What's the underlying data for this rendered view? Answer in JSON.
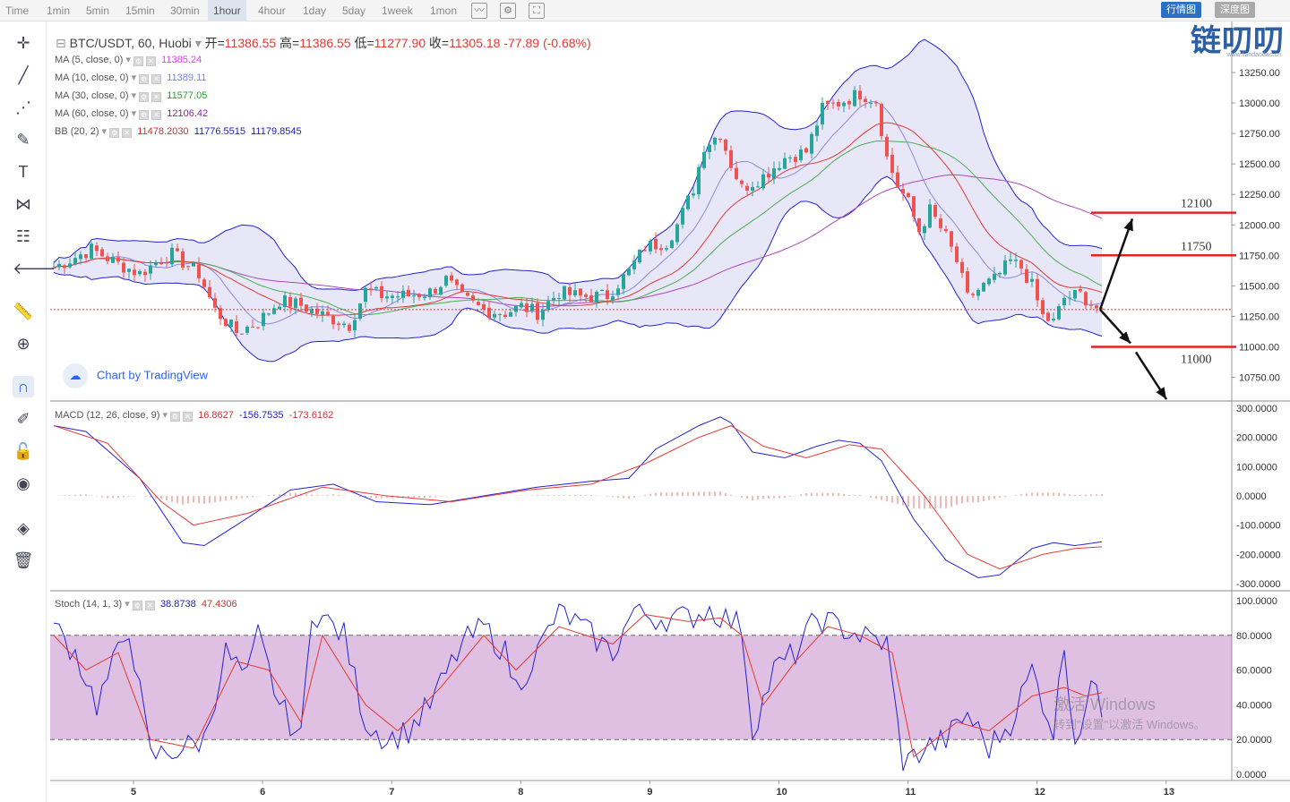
{
  "topbar": {
    "timeframes": [
      "Time",
      "1min",
      "5min",
      "15min",
      "30min",
      "1hour",
      "4hour",
      "1day",
      "5day",
      "1week",
      "1mon"
    ],
    "active": "1hour",
    "view_buttons": [
      "行情图",
      "深度图"
    ],
    "brand": "链叨叨",
    "brand_url": "www.liandaodao.cn"
  },
  "legend": {
    "symbol": "BTC/USDT, 60, Huobi",
    "open_label": "开=",
    "open": "11386.55",
    "high_label": "高=",
    "high": "11386.55",
    "low_label": "低=",
    "low": "11277.90",
    "close_label": "收=",
    "close": "11305.18",
    "change": "-77.89 (-0.68%)",
    "ma5": {
      "name": "MA (5, close, 0)",
      "value": "11385.24"
    },
    "ma10": {
      "name": "MA (10, close, 0)",
      "value": "11389.11"
    },
    "ma30": {
      "name": "MA (30, close, 0)",
      "value": "11577.05"
    },
    "ma60": {
      "name": "MA (60, close, 0)",
      "value": "12106.42"
    },
    "bb": {
      "name": "BB (20, 2)",
      "v1": "11478.2030",
      "v2": "11776.5515",
      "v3": "11179.8545"
    },
    "macd": {
      "name": "MACD (12, 26, close, 9)",
      "v1": "16.8627",
      "v2": "-156.7535",
      "v3": "-173.6162"
    },
    "stoch": {
      "name": "Stoch (14, 1, 3)",
      "v1": "38.8738",
      "v2": "47.4306"
    }
  },
  "watermark": {
    "credit": "Chart by TradingView",
    "win1": "激活 Windows",
    "win2": "转到\"设置\"以激活 Windows。"
  },
  "colors": {
    "up": "#26a69a",
    "down": "#ef5350",
    "bb": "#3b3bd6",
    "ma10": "#8a8ae0",
    "ma30": "#4caf50",
    "ma60": "#ab47bc",
    "level": "#e02424"
  },
  "chart_data": {
    "type": "candlestick",
    "symbol": "BTC/USDT",
    "interval": "60",
    "x_ticks": [
      "5",
      "6",
      "7",
      "8",
      "9",
      "10",
      "11",
      "12",
      "13"
    ],
    "price_axis": {
      "ylim": [
        10600,
        13500
      ],
      "ticks": [
        10750,
        11000,
        11250,
        11500,
        11750,
        12000,
        12250,
        12500,
        12750,
        13000,
        13250
      ]
    },
    "macd_axis": {
      "ylim": [
        -300,
        300
      ],
      "ticks": [
        "300.0000",
        "200.0000",
        "100.0000",
        "0.0000",
        "-100.0000",
        "-200.0000",
        "-300.0000"
      ]
    },
    "stoch_axis": {
      "ylim": [
        0,
        100
      ],
      "ticks": [
        "100.0000",
        "80.0000",
        "60.0000",
        "40.0000",
        "20.0000",
        "0.0000"
      ]
    },
    "last_price": 11305.18,
    "annotations": [
      {
        "type": "level",
        "label": "12100",
        "price": 12100
      },
      {
        "type": "level",
        "label": "11750",
        "price": 11750
      },
      {
        "type": "level",
        "label": "11000",
        "price": 11000
      }
    ],
    "price_path": [
      [
        0,
        11650
      ],
      [
        7,
        11800
      ],
      [
        12,
        11680
      ],
      [
        16,
        11600
      ],
      [
        20,
        11720
      ],
      [
        22,
        11760
      ],
      [
        27,
        11600
      ],
      [
        30,
        11300
      ],
      [
        34,
        11120
      ],
      [
        38,
        11200
      ],
      [
        42,
        11380
      ],
      [
        46,
        11340
      ],
      [
        50,
        11260
      ],
      [
        55,
        11180
      ],
      [
        58,
        11460
      ],
      [
        61,
        11420
      ],
      [
        66,
        11420
      ],
      [
        70,
        11450
      ],
      [
        73,
        11550
      ],
      [
        76,
        11400
      ],
      [
        80,
        11300
      ],
      [
        84,
        11280
      ],
      [
        87,
        11330
      ],
      [
        90,
        11280
      ],
      [
        94,
        11450
      ],
      [
        98,
        11410
      ],
      [
        103,
        11420
      ],
      [
        107,
        11620
      ],
      [
        110,
        11820
      ],
      [
        114,
        11860
      ],
      [
        116,
        12000
      ],
      [
        119,
        12300
      ],
      [
        121,
        12650
      ],
      [
        124,
        12750
      ],
      [
        126,
        12500
      ],
      [
        128,
        12300
      ],
      [
        132,
        12400
      ],
      [
        136,
        12550
      ],
      [
        140,
        12600
      ],
      [
        143,
        12950
      ],
      [
        146,
        13000
      ],
      [
        150,
        13080
      ],
      [
        153,
        13020
      ],
      [
        155,
        12550
      ],
      [
        157,
        12320
      ],
      [
        159,
        12180
      ],
      [
        161,
        11950
      ],
      [
        163,
        12120
      ],
      [
        166,
        11900
      ],
      [
        168,
        11700
      ],
      [
        170,
        11400
      ],
      [
        173,
        11500
      ],
      [
        175,
        11550
      ],
      [
        178,
        11700
      ],
      [
        180,
        11650
      ],
      [
        182,
        11500
      ],
      [
        184,
        11250
      ],
      [
        186,
        11200
      ],
      [
        188,
        11400
      ],
      [
        191,
        11430
      ],
      [
        194,
        11320
      ],
      [
        195,
        11305
      ]
    ],
    "macd_line": [
      [
        0,
        240
      ],
      [
        6,
        220
      ],
      [
        16,
        60
      ],
      [
        24,
        -160
      ],
      [
        28,
        -170
      ],
      [
        34,
        -100
      ],
      [
        44,
        20
      ],
      [
        52,
        40
      ],
      [
        60,
        -20
      ],
      [
        70,
        -30
      ],
      [
        80,
        0
      ],
      [
        90,
        30
      ],
      [
        100,
        50
      ],
      [
        107,
        60
      ],
      [
        112,
        160
      ],
      [
        120,
        240
      ],
      [
        124,
        270
      ],
      [
        126,
        250
      ],
      [
        130,
        150
      ],
      [
        136,
        130
      ],
      [
        142,
        170
      ],
      [
        146,
        190
      ],
      [
        150,
        180
      ],
      [
        154,
        120
      ],
      [
        160,
        -80
      ],
      [
        166,
        -220
      ],
      [
        172,
        -280
      ],
      [
        176,
        -270
      ],
      [
        182,
        -180
      ],
      [
        186,
        -160
      ],
      [
        190,
        -170
      ],
      [
        195,
        -157
      ]
    ],
    "signal_line": [
      [
        0,
        240
      ],
      [
        10,
        180
      ],
      [
        20,
        -20
      ],
      [
        26,
        -100
      ],
      [
        36,
        -60
      ],
      [
        50,
        30
      ],
      [
        62,
        0
      ],
      [
        74,
        -20
      ],
      [
        88,
        20
      ],
      [
        100,
        40
      ],
      [
        110,
        110
      ],
      [
        120,
        200
      ],
      [
        126,
        240
      ],
      [
        132,
        170
      ],
      [
        140,
        130
      ],
      [
        148,
        175
      ],
      [
        154,
        160
      ],
      [
        162,
        0
      ],
      [
        170,
        -200
      ],
      [
        176,
        -250
      ],
      [
        184,
        -200
      ],
      [
        190,
        -180
      ],
      [
        195,
        -174
      ]
    ],
    "macd_histogram": "MACD minus signal, drawn as bars around the zero line",
    "stoch_k": [
      [
        0,
        85
      ],
      [
        4,
        70
      ],
      [
        8,
        40
      ],
      [
        12,
        70
      ],
      [
        14,
        85
      ],
      [
        18,
        10
      ],
      [
        24,
        15
      ],
      [
        28,
        20
      ],
      [
        32,
        70
      ],
      [
        36,
        55
      ],
      [
        38,
        80
      ],
      [
        42,
        40
      ],
      [
        46,
        20
      ],
      [
        48,
        95
      ],
      [
        54,
        80
      ],
      [
        58,
        30
      ],
      [
        62,
        20
      ],
      [
        66,
        25
      ],
      [
        70,
        40
      ],
      [
        76,
        75
      ],
      [
        80,
        85
      ],
      [
        84,
        70
      ],
      [
        86,
        50
      ],
      [
        90,
        70
      ],
      [
        94,
        95
      ],
      [
        98,
        85
      ],
      [
        104,
        70
      ],
      [
        108,
        95
      ],
      [
        112,
        90
      ],
      [
        118,
        90
      ],
      [
        122,
        95
      ],
      [
        128,
        85
      ],
      [
        130,
        25
      ],
      [
        134,
        60
      ],
      [
        138,
        70
      ],
      [
        142,
        90
      ],
      [
        146,
        85
      ],
      [
        150,
        80
      ],
      [
        155,
        75
      ],
      [
        158,
        5
      ],
      [
        162,
        15
      ],
      [
        166,
        20
      ],
      [
        170,
        35
      ],
      [
        174,
        15
      ],
      [
        178,
        30
      ],
      [
        182,
        60
      ],
      [
        186,
        25
      ],
      [
        188,
        75
      ],
      [
        190,
        20
      ],
      [
        194,
        55
      ],
      [
        195,
        39
      ]
    ],
    "stoch_d": [
      [
        0,
        80
      ],
      [
        6,
        60
      ],
      [
        12,
        70
      ],
      [
        18,
        20
      ],
      [
        26,
        15
      ],
      [
        34,
        65
      ],
      [
        40,
        60
      ],
      [
        46,
        30
      ],
      [
        50,
        80
      ],
      [
        58,
        40
      ],
      [
        64,
        25
      ],
      [
        72,
        50
      ],
      [
        80,
        80
      ],
      [
        86,
        60
      ],
      [
        94,
        85
      ],
      [
        104,
        75
      ],
      [
        110,
        92
      ],
      [
        118,
        88
      ],
      [
        124,
        90
      ],
      [
        128,
        80
      ],
      [
        132,
        40
      ],
      [
        138,
        65
      ],
      [
        144,
        85
      ],
      [
        150,
        80
      ],
      [
        156,
        70
      ],
      [
        160,
        10
      ],
      [
        168,
        30
      ],
      [
        174,
        25
      ],
      [
        182,
        45
      ],
      [
        188,
        50
      ],
      [
        192,
        45
      ],
      [
        195,
        47
      ]
    ],
    "stoch_band": [
      20,
      80
    ]
  }
}
